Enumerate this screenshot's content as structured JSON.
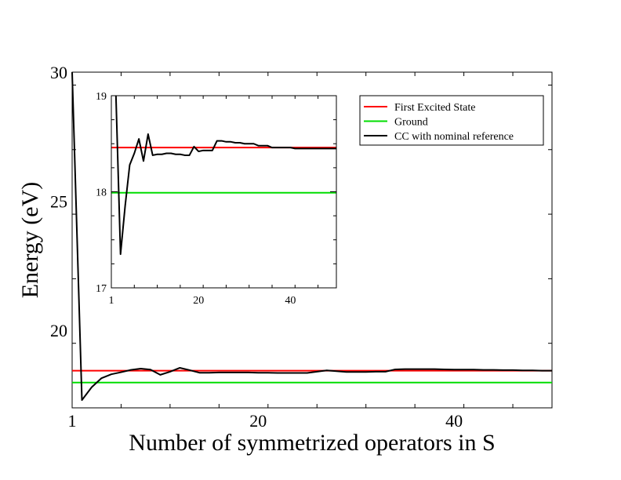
{
  "chart_data": [
    {
      "type": "line",
      "title": "",
      "xlabel": "Number of  symmetrized operators in S",
      "ylabel": "Energy (eV)",
      "xlim": [
        1,
        50
      ],
      "ylim": [
        17,
        30
      ],
      "xticks": [
        1,
        20,
        40
      ],
      "yticks": [
        20,
        25,
        30
      ],
      "grid": false,
      "series": [
        {
          "name": "First Excited State",
          "color": "#ff0000",
          "x": [
            1,
            50
          ],
          "y": [
            18.44,
            18.44
          ]
        },
        {
          "name": "Ground",
          "color": "#00dd00",
          "x": [
            1,
            50
          ],
          "y": [
            17.98,
            17.98
          ]
        },
        {
          "name": "CC with nominal reference",
          "color": "#000000",
          "x": [
            1,
            2,
            3,
            4,
            5,
            6,
            7,
            8,
            9,
            10,
            11,
            12,
            13,
            14,
            15,
            16,
            17,
            18,
            19,
            20,
            21,
            22,
            23,
            24,
            25,
            26,
            27,
            28,
            29,
            30,
            31,
            32,
            33,
            34,
            35,
            36,
            37,
            38,
            39,
            40,
            41,
            42,
            43,
            44,
            45,
            46,
            47,
            48,
            49,
            50
          ],
          "y": [
            30.0,
            17.3,
            17.8,
            18.15,
            18.3,
            18.38,
            18.47,
            18.52,
            18.48,
            18.28,
            18.4,
            18.55,
            18.46,
            18.36,
            18.36,
            18.37,
            18.37,
            18.37,
            18.37,
            18.36,
            18.36,
            18.35,
            18.35,
            18.35,
            18.35,
            18.4,
            18.45,
            18.42,
            18.39,
            18.39,
            18.39,
            18.4,
            18.4,
            18.49,
            18.5,
            18.5,
            18.5,
            18.5,
            18.49,
            18.48,
            18.48,
            18.48,
            18.47,
            18.47,
            18.46,
            18.46,
            18.45,
            18.45,
            18.44,
            18.44
          ]
        }
      ]
    },
    {
      "type": "line",
      "title": "",
      "xlabel": "",
      "ylabel": "",
      "xlim": [
        1,
        50
      ],
      "ylim": [
        17,
        19
      ],
      "xticks": [
        1,
        20,
        40
      ],
      "yticks": [
        17,
        18,
        19
      ],
      "grid": false,
      "legend": "top-right",
      "series": [
        {
          "name": "First Excited State",
          "color": "#ff0000",
          "x": [
            1,
            50
          ],
          "y": [
            18.46,
            18.46
          ]
        },
        {
          "name": "Ground",
          "color": "#00dd00",
          "x": [
            1,
            50
          ],
          "y": [
            17.99,
            17.99
          ]
        },
        {
          "name": "CC with nominal reference",
          "color": "#000000",
          "x": [
            2,
            3,
            4,
            5,
            6,
            7,
            8,
            9,
            10,
            11,
            12,
            13,
            14,
            15,
            16,
            17,
            18,
            19,
            20,
            21,
            22,
            23,
            24,
            25,
            26,
            27,
            28,
            29,
            30,
            31,
            32,
            33,
            34,
            35,
            36,
            37,
            38,
            39,
            40,
            41,
            42,
            43,
            44,
            45,
            46,
            47,
            48,
            49,
            50
          ],
          "y": [
            19.0,
            17.35,
            17.85,
            18.28,
            18.4,
            18.55,
            18.32,
            18.6,
            18.38,
            18.39,
            18.39,
            18.4,
            18.4,
            18.39,
            18.39,
            18.38,
            18.38,
            18.47,
            18.42,
            18.43,
            18.43,
            18.43,
            18.53,
            18.53,
            18.52,
            18.52,
            18.51,
            18.51,
            18.5,
            18.5,
            18.5,
            18.48,
            18.48,
            18.48,
            18.46,
            18.46,
            18.46,
            18.46,
            18.46,
            18.45,
            18.45,
            18.45,
            18.45,
            18.45,
            18.45,
            18.45,
            18.45,
            18.45,
            18.45
          ]
        }
      ]
    }
  ]
}
